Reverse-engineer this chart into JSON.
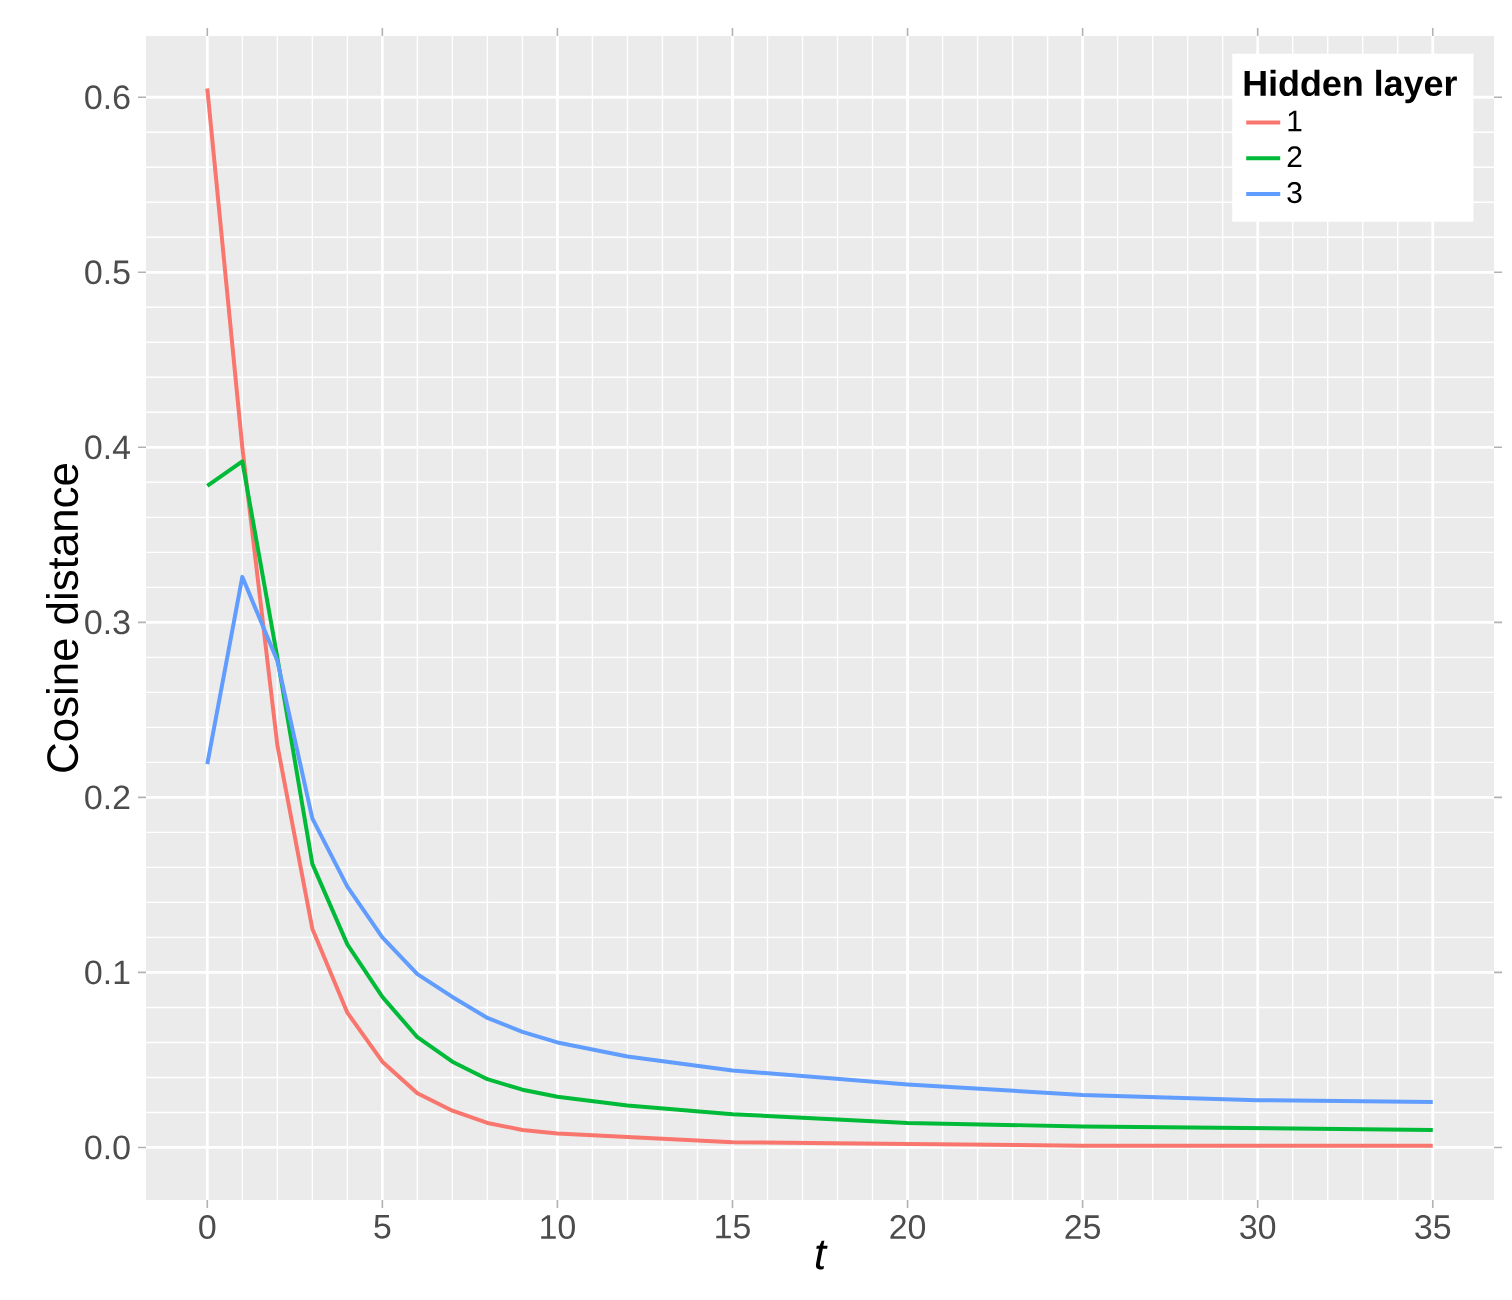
{
  "chart_data": {
    "type": "line",
    "xlabel": "t",
    "ylabel": "Cosine distance",
    "legend_title": "Hidden layer",
    "x": [
      0,
      1,
      2,
      3,
      4,
      5,
      6,
      7,
      8,
      9,
      10,
      12,
      15,
      20,
      25,
      30,
      35
    ],
    "series": [
      {
        "name": "1",
        "color": "#f8766d",
        "values": [
          0.605,
          0.4,
          0.23,
          0.125,
          0.077,
          0.049,
          0.031,
          0.021,
          0.014,
          0.01,
          0.008,
          0.006,
          0.003,
          0.002,
          0.001,
          0.001,
          0.001
        ]
      },
      {
        "name": "2",
        "color": "#00ba38",
        "values": [
          0.378,
          0.392,
          0.28,
          0.162,
          0.116,
          0.086,
          0.063,
          0.049,
          0.039,
          0.033,
          0.029,
          0.024,
          0.019,
          0.014,
          0.012,
          0.011,
          0.01
        ]
      },
      {
        "name": "3",
        "color": "#619cff",
        "values": [
          0.219,
          0.326,
          0.278,
          0.188,
          0.149,
          0.12,
          0.099,
          0.086,
          0.074,
          0.066,
          0.06,
          0.052,
          0.044,
          0.036,
          0.03,
          0.027,
          0.026
        ]
      }
    ],
    "xlim": [
      -1.75,
      36.75
    ],
    "ylim": [
      -0.03,
      0.635
    ],
    "xticks": [
      0,
      5,
      10,
      15,
      20,
      25,
      30,
      35
    ],
    "yticks": [
      {
        "value": 0.0,
        "label": "0.0"
      },
      {
        "value": 0.1,
        "label": "0.1"
      },
      {
        "value": 0.2,
        "label": "0.2"
      },
      {
        "value": 0.3,
        "label": "0.3"
      },
      {
        "value": 0.4,
        "label": "0.4"
      },
      {
        "value": 0.5,
        "label": "0.5"
      },
      {
        "value": 0.6,
        "label": "0.6"
      }
    ],
    "grid": true,
    "legend": "top right",
    "line_style": "solid",
    "marker": "none"
  }
}
